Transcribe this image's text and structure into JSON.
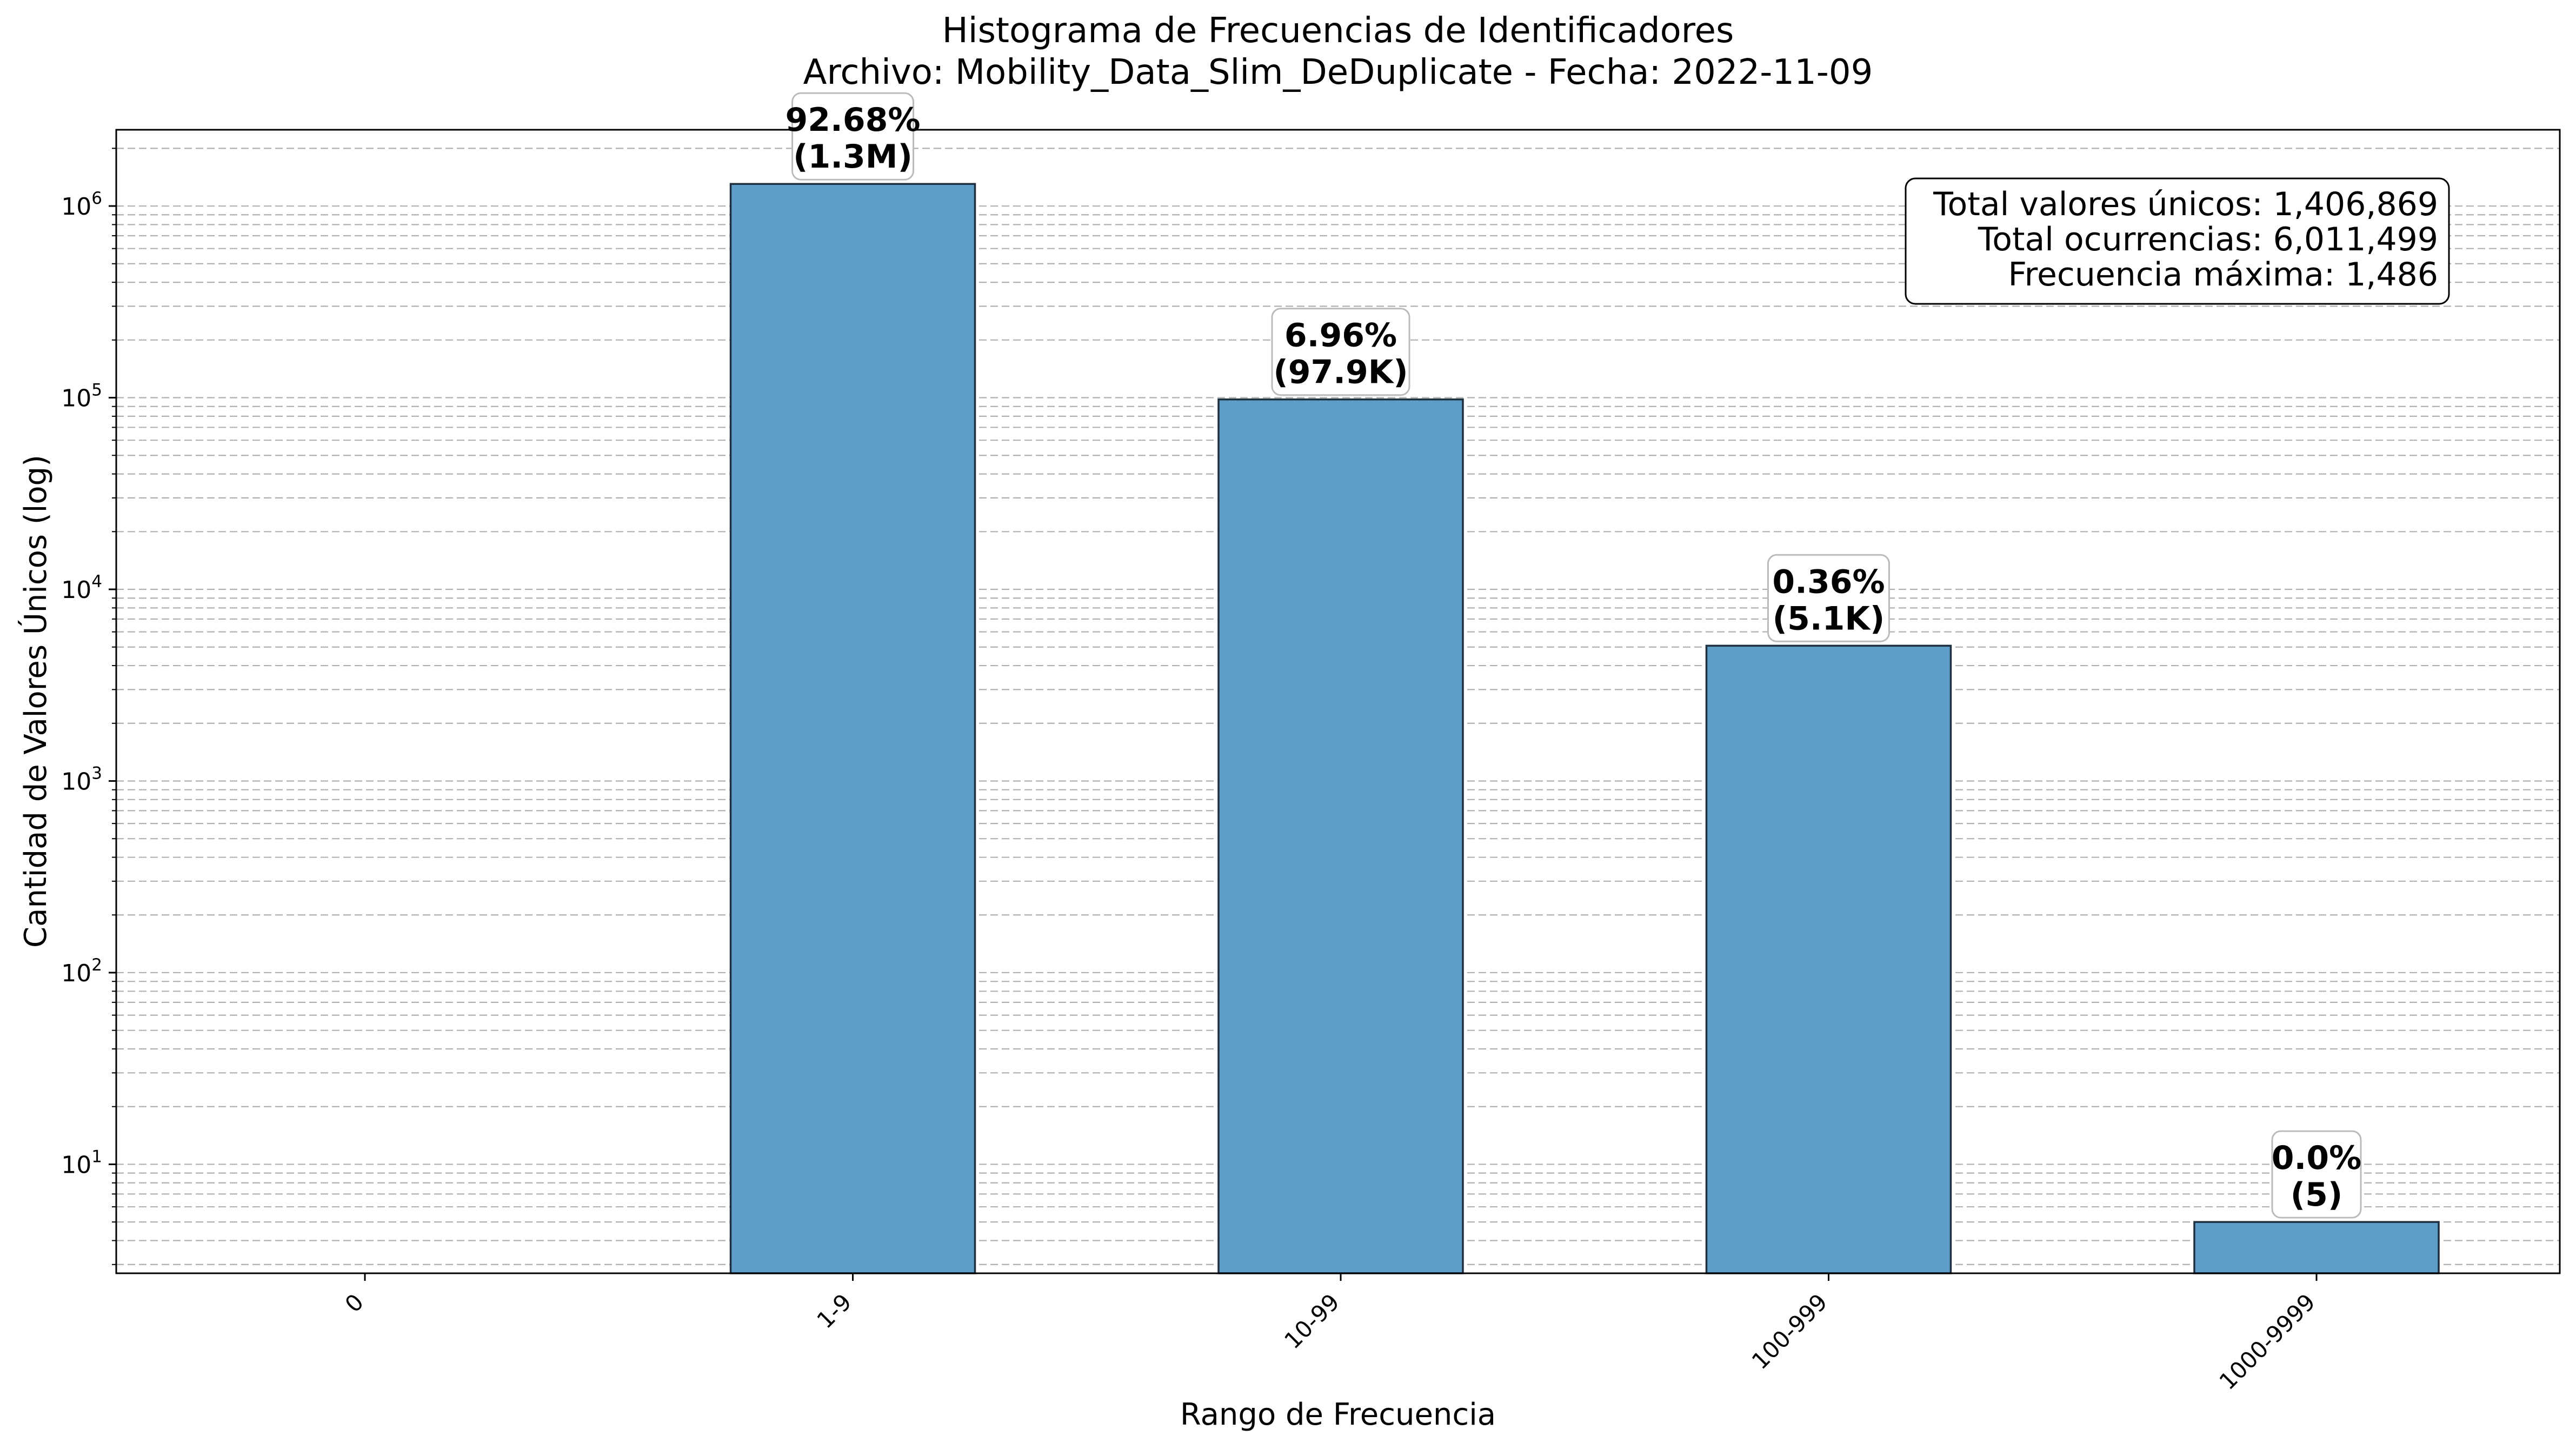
{
  "chart_data": {
    "type": "bar",
    "title": "Histograma de Frecuencias de Identificadores",
    "subtitle": "Archivo: Mobility_Data_Slim_DeDuplicate - Fecha: 2022-11-09",
    "xlabel": "Rango de Frecuencia",
    "ylabel": "Cantidad de Valores Únicos (log)",
    "yscale": "log",
    "ylim": [
      2.7,
      2500000
    ],
    "categories": [
      "0",
      "1-9",
      "10-99",
      "100-999",
      "1000-9999"
    ],
    "values": [
      0,
      1303849,
      97935,
      5080,
      5
    ],
    "bar_labels": [
      null,
      {
        "pct": "92.68%",
        "count": "(1.3M)"
      },
      {
        "pct": "6.96%",
        "count": "(97.9K)"
      },
      {
        "pct": "0.36%",
        "count": "(5.1K)"
      },
      {
        "pct": "0.0%",
        "count": "(5)"
      }
    ],
    "y_tick_labels": [
      {
        "value": 10,
        "base": "10",
        "exp": "1"
      },
      {
        "value": 100,
        "base": "10",
        "exp": "2"
      },
      {
        "value": 1000,
        "base": "10",
        "exp": "3"
      },
      {
        "value": 10000,
        "base": "10",
        "exp": "4"
      },
      {
        "value": 100000,
        "base": "10",
        "exp": "5"
      },
      {
        "value": 1000000,
        "base": "10",
        "exp": "6"
      }
    ],
    "grid": true,
    "bar_color": "#5f9dc9",
    "bar_edge_color": "#1f2f3f"
  },
  "stats_box": {
    "lines": [
      "Total valores únicos: 1,406,869",
      "Total ocurrencias: 6,011,499",
      "Frecuencia máxima: 1,486"
    ],
    "placement": "top-right"
  }
}
